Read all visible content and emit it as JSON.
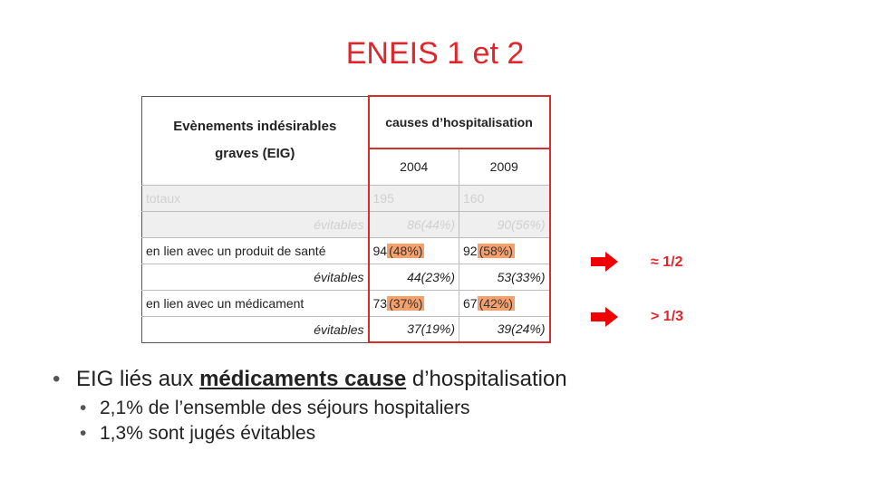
{
  "title": "ENEIS 1 et 2",
  "table": {
    "header_eig_line1": "Evènements indésirables",
    "header_eig_line2": "graves (EIG)",
    "header_causes": "causes d’hospitalisation",
    "year1": "2004",
    "year2": "2009",
    "rows": [
      {
        "label": "totaux",
        "sub": "évitables",
        "v2004": "195",
        "v2009": "160",
        "s2004": "86(44%)",
        "s2009": "90(56%)"
      },
      {
        "label": "en lien avec un produit de santé",
        "sub": "évitables",
        "v2004": "94",
        "p2004": "(48%)",
        "v2009": "92",
        "p2009": "(58%)",
        "s2004": "44(23%)",
        "s2009": "53(33%)"
      },
      {
        "label": "en lien avec un médicament",
        "sub": "évitables",
        "v2004": "73",
        "p2004": "(37%)",
        "v2009": "67",
        "p2009": "(42%)",
        "s2004": "37(19%)",
        "s2009": "39(24%)"
      }
    ]
  },
  "notes": {
    "half": "≈ 1/2",
    "third": "> 1/3"
  },
  "bullets": {
    "main_pre": "EIG liés aux ",
    "main_bold": "médicaments cause",
    "main_post": " d’hospitalisation",
    "sub1": "2,1% de l’ensemble des séjours hospitaliers",
    "sub2": "1,3% sont jugés évitables"
  },
  "colors": {
    "accent": "#e0262b",
    "highlight": "#f7a06b"
  }
}
